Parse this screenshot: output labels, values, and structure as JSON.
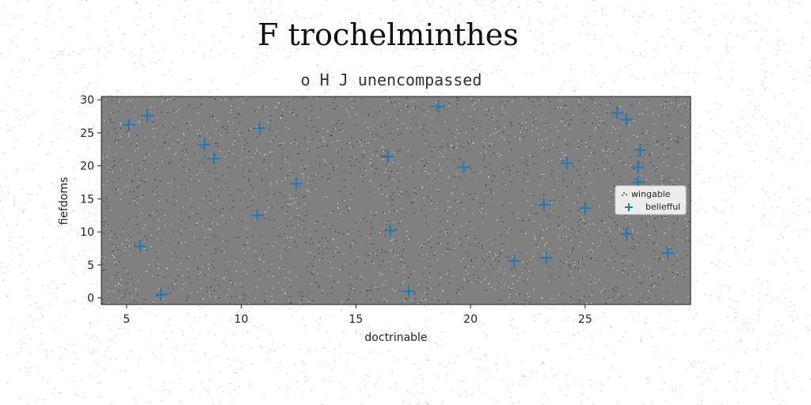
{
  "title": "F trochelminthes",
  "subtitle": "o H J unencompassed",
  "colors": {
    "plot_background": "#808080",
    "marker": "#1f77b4",
    "noise_dark": "#111111",
    "noise_light": "#ffffff"
  },
  "chart_data": {
    "type": "scatter",
    "xlabel": "doctrinable",
    "ylabel": "fiefdoms",
    "xlim": [
      3.9,
      29.6
    ],
    "ylim": [
      -1,
      30.5
    ],
    "xticks": [
      5,
      10,
      15,
      20,
      25
    ],
    "yticks": [
      0,
      5,
      10,
      15,
      20,
      25,
      30
    ],
    "grid": false,
    "legend_position": "center-right",
    "legend": [
      "wingable",
      "beliefful"
    ],
    "series": [
      {
        "name": "wingable",
        "marker": "dot",
        "x": [],
        "y": []
      },
      {
        "name": "beliefful",
        "marker": "plus",
        "x": [
          5.1,
          5.9,
          5.6,
          6.5,
          8.4,
          8.8,
          10.8,
          10.7,
          12.4,
          16.4,
          16.5,
          17.3,
          18.6,
          19.7,
          21.9,
          23.2,
          23.3,
          24.2,
          25.0,
          26.4,
          26.8,
          26.8,
          27.4,
          27.3,
          27.3,
          28.6
        ],
        "y": [
          26.2,
          27.6,
          7.8,
          0.5,
          23.2,
          21.1,
          25.7,
          12.5,
          17.3,
          21.4,
          10.2,
          1.0,
          29.0,
          19.8,
          5.6,
          14.1,
          6.1,
          20.4,
          13.6,
          28.0,
          27.0,
          9.7,
          22.4,
          19.8,
          17.5,
          6.8
        ]
      }
    ]
  }
}
